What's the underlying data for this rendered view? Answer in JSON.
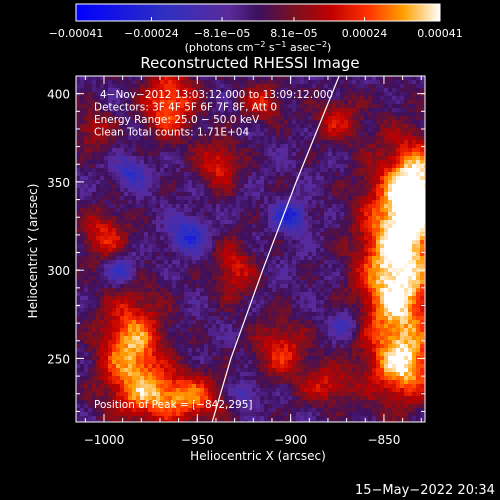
{
  "chart_data": {
    "type": "heatmap",
    "title": "Reconstructed RHESSI Image",
    "xlabel": "Heliocentric X (arcsec)",
    "ylabel": "Heliocentric Y (arcsec)",
    "xlim": [
      -1015,
      -828
    ],
    "ylim": [
      214,
      410
    ],
    "x_ticks": [
      -1000,
      -950,
      -900,
      -850
    ],
    "y_ticks": [
      250,
      300,
      350,
      400
    ],
    "x_tick_labels": [
      "−1000",
      "−950",
      "−900",
      "−850"
    ],
    "y_tick_labels": [
      "250",
      "300",
      "350",
      "400"
    ],
    "colorbar": {
      "range": [
        -0.00041,
        0.00041
      ],
      "tick_values": [
        -0.00041,
        -0.00024,
        -8.1e-05,
        8.1e-05,
        0.00024,
        0.00041
      ],
      "tick_labels": [
        "−0.00041",
        "−0.00024",
        "−8.1e−05",
        "8.1e−05",
        "0.00024",
        "0.00041"
      ],
      "unit_prefix": "(photons cm",
      "unit_exp1": "−2",
      "unit_mid": " s",
      "unit_exp2": "−1",
      "unit_mid2": " asec",
      "unit_exp3": "−2",
      "unit_suffix": ")"
    },
    "annotations": [
      "4−Nov−2012 13:03:12.000 to 13:09:12.000",
      "Detectors: 3F 4F 5F 6F 7F 8F, Att 0",
      "Energy Range: 25.0 − 50.0 keV",
      "Clean     Total counts: 1.71E+04"
    ],
    "peak_label": "Position of Peak = [−842,295]",
    "limb_arc": [
      [
        -942,
        214
      ],
      [
        -932,
        250
      ],
      [
        -915,
        300
      ],
      [
        -897,
        350
      ],
      [
        -874,
        410
      ]
    ],
    "blobs": [
      {
        "x": -843,
        "y": 300,
        "sx": 14,
        "sy": 40,
        "v": 1.15
      },
      {
        "x": -832,
        "y": 345,
        "sx": 10,
        "sy": 18,
        "v": 0.9
      },
      {
        "x": -838,
        "y": 245,
        "sx": 12,
        "sy": 12,
        "v": 0.6
      },
      {
        "x": -985,
        "y": 255,
        "sx": 12,
        "sy": 22,
        "v": 0.9
      },
      {
        "x": -960,
        "y": 228,
        "sx": 18,
        "sy": 10,
        "v": 0.8
      },
      {
        "x": -965,
        "y": 395,
        "sx": 10,
        "sy": 14,
        "v": 0.75
      },
      {
        "x": -938,
        "y": 360,
        "sx": 8,
        "sy": 10,
        "v": 0.55
      },
      {
        "x": -1000,
        "y": 320,
        "sx": 9,
        "sy": 10,
        "v": 0.55
      },
      {
        "x": -905,
        "y": 255,
        "sx": 10,
        "sy": 12,
        "v": 0.55
      },
      {
        "x": -875,
        "y": 385,
        "sx": 9,
        "sy": 9,
        "v": 0.45
      },
      {
        "x": -915,
        "y": 395,
        "sx": 8,
        "sy": 8,
        "v": 0.5
      },
      {
        "x": -930,
        "y": 300,
        "sx": 8,
        "sy": 12,
        "v": 0.5
      },
      {
        "x": -880,
        "y": 235,
        "sx": 10,
        "sy": 8,
        "v": 0.5
      },
      {
        "x": -1005,
        "y": 380,
        "sx": 7,
        "sy": 8,
        "v": 0.45
      },
      {
        "x": -900,
        "y": 330,
        "sx": 6,
        "sy": 6,
        "v": -0.6
      },
      {
        "x": -955,
        "y": 320,
        "sx": 7,
        "sy": 7,
        "v": -0.55
      },
      {
        "x": -990,
        "y": 300,
        "sx": 6,
        "sy": 6,
        "v": -0.5
      },
      {
        "x": -925,
        "y": 230,
        "sx": 6,
        "sy": 6,
        "v": -0.45
      },
      {
        "x": -985,
        "y": 355,
        "sx": 6,
        "sy": 6,
        "v": -0.45
      },
      {
        "x": -870,
        "y": 270,
        "sx": 6,
        "sy": 6,
        "v": -0.4
      }
    ],
    "colors": {
      "cmap": [
        [
          0.0,
          "#0000ff"
        ],
        [
          0.25,
          "#3030c0"
        ],
        [
          0.42,
          "#5a2a9a"
        ],
        [
          0.5,
          "#3c1060"
        ],
        [
          0.6,
          "#7a1020"
        ],
        [
          0.7,
          "#c00000"
        ],
        [
          0.8,
          "#ff3000"
        ],
        [
          0.9,
          "#ffa000"
        ],
        [
          1.0,
          "#ffffff"
        ]
      ],
      "limb": "#ffffff"
    }
  },
  "footer": {
    "date": "15−May−2022 20:34"
  }
}
